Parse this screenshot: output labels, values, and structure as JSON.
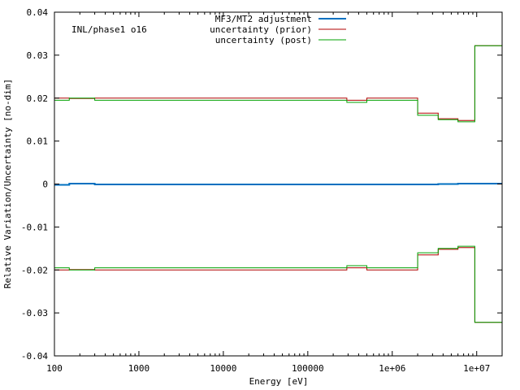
{
  "chart_data": {
    "type": "line",
    "title": "",
    "annotation": "INL/phase1 o16",
    "xlabel": "Energy [eV]",
    "ylabel": "Relative Variation/Uncertainty [no-dim]",
    "x_scale": "log",
    "xlim": [
      100,
      20000000
    ],
    "ylim": [
      -0.04,
      0.04
    ],
    "x_ticks": [
      {
        "value": 100,
        "label": "100"
      },
      {
        "value": 1000,
        "label": "1000"
      },
      {
        "value": 10000,
        "label": "10000"
      },
      {
        "value": 100000,
        "label": "100000"
      },
      {
        "value": 1000000,
        "label": "1e+06"
      },
      {
        "value": 10000000,
        "label": "1e+07"
      }
    ],
    "y_ticks": [
      {
        "value": 0.04,
        "label": "0.04"
      },
      {
        "value": 0.03,
        "label": "0.03"
      },
      {
        "value": 0.02,
        "label": "0.02"
      },
      {
        "value": 0.01,
        "label": "0.01"
      },
      {
        "value": 0,
        "label": "0"
      },
      {
        "value": -0.01,
        "label": "-0.01"
      },
      {
        "value": -0.02,
        "label": "-0.02"
      },
      {
        "value": -0.03,
        "label": "-0.03"
      },
      {
        "value": -0.04,
        "label": "-0.04"
      }
    ],
    "grid": false,
    "legend_position": "top-center",
    "bin_edges": [
      100,
      150,
      300,
      290000,
      500000,
      2000000,
      3500000,
      6000000,
      9500000,
      20000000
    ],
    "series": [
      {
        "name": "MF3/MT2 adjustment",
        "color": "#0070c0",
        "width": 2,
        "mirror": false,
        "values": [
          -0.0002,
          0.0001,
          -0.0001,
          -0.0001,
          -0.0001,
          -0.0001,
          0.0,
          0.0001,
          0.0001
        ]
      },
      {
        "name": "uncertainty (prior)",
        "color": "#b00000",
        "width": 1,
        "mirror": true,
        "values": [
          0.02,
          0.0199,
          0.02,
          0.0195,
          0.02,
          0.0165,
          0.0152,
          0.0148,
          0.0322
        ]
      },
      {
        "name": "uncertainty (post)",
        "color": "#00a000",
        "width": 1,
        "mirror": true,
        "values": [
          0.0195,
          0.02,
          0.0195,
          0.019,
          0.0195,
          0.016,
          0.015,
          0.0145,
          0.0322
        ]
      }
    ]
  }
}
